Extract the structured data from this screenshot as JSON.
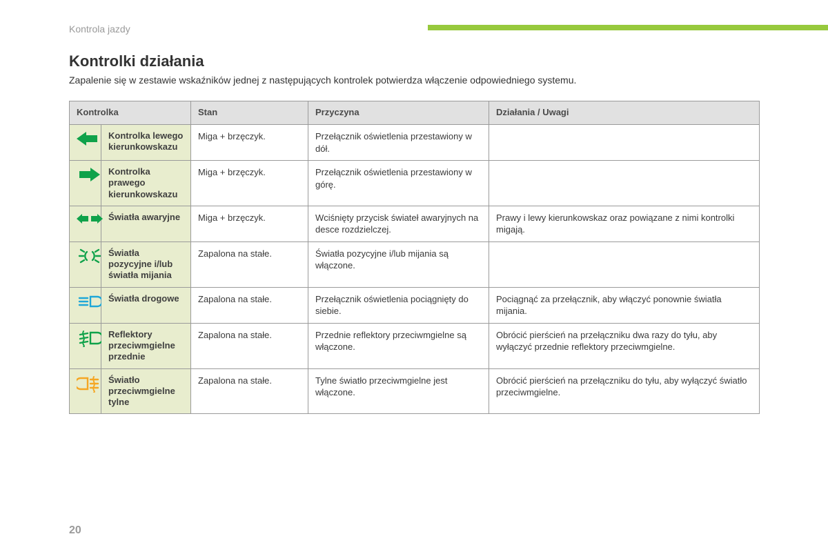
{
  "section_label": "Kontrola jazdy",
  "title": "Kontrolki działania",
  "intro": "Zapalenie się w zestawie wskaźników jednej z następujących kontrolek potwierdza włączenie odpowiedniego systemu.",
  "page_number": "20",
  "colors": {
    "accent_bar": "#97c93d",
    "header_bg": "#e1e1e1",
    "row_icon_bg": "#e8edce",
    "border": "#9a9a9a",
    "text_muted": "#9a9a9a",
    "icon_green": "#0fa24a",
    "icon_blue": "#1ea7d8",
    "icon_amber": "#f5a623"
  },
  "columns": {
    "c1": "Kontrolka",
    "c2": "Stan",
    "c3": "Przyczyna",
    "c4": "Działania / Uwagi"
  },
  "rows": [
    {
      "icon": "arrow-left",
      "icon_color": "#0fa24a",
      "name": "Kontrolka lewego kierunkowskazu",
      "state": "Miga + brzęczyk.",
      "cause": "Przełącznik oświetlenia przestawiony w dół.",
      "action": ""
    },
    {
      "icon": "arrow-right",
      "icon_color": "#0fa24a",
      "name": "Kontrolka prawego kierunkowskazu",
      "state": "Miga + brzęczyk.",
      "cause": "Przełącznik oświetlenia przestawiony w górę.",
      "action": ""
    },
    {
      "icon": "hazard",
      "icon_color": "#0fa24a",
      "name": "Światła awaryjne",
      "state": "Miga + brzęczyk.",
      "cause": "Wciśnięty przycisk świateł awaryjnych na desce rozdzielczej.",
      "action": "Prawy i lewy kierunkowskaz oraz powiązane z nimi kontrolki migają."
    },
    {
      "icon": "sidelights",
      "icon_color": "#0fa24a",
      "name": "Światła pozycyjne i/lub światła mijania",
      "state": "Zapalona na stałe.",
      "cause": "Światła pozycyjne i/lub mijania są włączone.",
      "action": ""
    },
    {
      "icon": "high-beam",
      "icon_color": "#1ea7d8",
      "name": "Światła drogowe",
      "state": "Zapalona na stałe.",
      "cause": "Przełącznik oświetlenia pociągnięty do siebie.",
      "action": "Pociągnąć za przełącznik, aby włączyć ponownie światła mijania."
    },
    {
      "icon": "front-fog",
      "icon_color": "#0fa24a",
      "name": "Reflektory przeciwmgielne przednie",
      "state": "Zapalona na stałe.",
      "cause": "Przednie reflektory przeciwmgielne są włączone.",
      "action": "Obrócić pierścień na przełączniku dwa razy do tyłu, aby wyłączyć przednie reflektory przeciwmgielne."
    },
    {
      "icon": "rear-fog",
      "icon_color": "#f5a623",
      "name": "Światło przeciwmgielne tylne",
      "state": "Zapalona na stałe.",
      "cause": "Tylne światło przeciwmgielne jest włączone.",
      "action": "Obrócić pierścień na przełączniku do tyłu, aby wyłączyć światło przeciwmgielne."
    }
  ]
}
